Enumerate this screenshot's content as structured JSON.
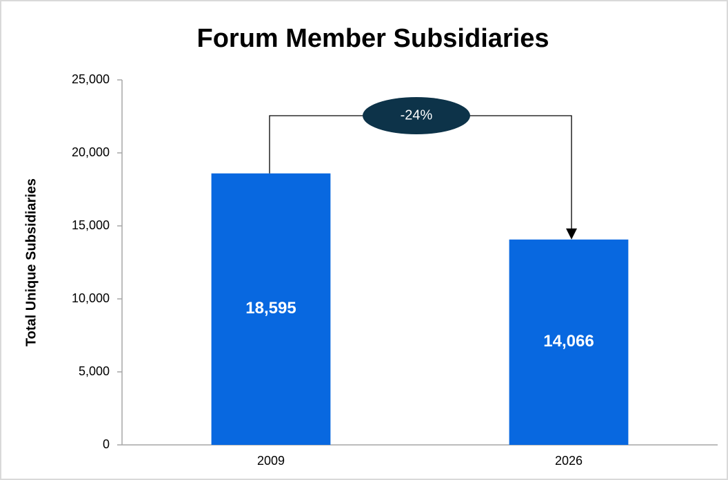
{
  "chart_data": {
    "type": "bar",
    "title": "Forum Member Subsidiaries",
    "y_label": "Total Unique Subsidiaries",
    "categories": [
      "2009",
      "2026"
    ],
    "values": [
      18595,
      14066
    ],
    "value_labels": [
      "18,595",
      "14,066"
    ],
    "color": "#0868e0",
    "ylim": [
      0,
      25000
    ],
    "yticks": [
      0,
      {
        "value": 5000,
        "label": "5,000"
      },
      {
        "value": 10000,
        "label": "10,000"
      },
      {
        "value": 15000,
        "label": "15,000"
      },
      {
        "value": 20000,
        "label": "20,000"
      },
      {
        "value": 25000,
        "label": "25,000"
      }
    ],
    "annotations": [
      "-24%"
    ],
    "annotation_color": "#0d3349"
  }
}
